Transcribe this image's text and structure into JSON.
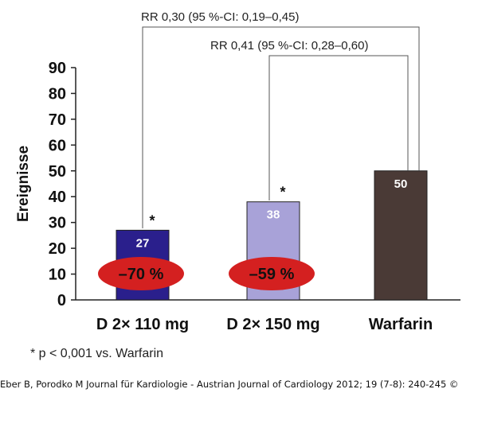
{
  "chart_data": {
    "type": "bar",
    "categories": [
      "D 2× 110 mg",
      "D 2× 150 mg",
      "Warfarin"
    ],
    "values": [
      27,
      38,
      50
    ],
    "value_labels": [
      "27",
      "38",
      "50"
    ],
    "bar_colors": [
      "#2a1f8c",
      "#a8a2d8",
      "#4a3a36"
    ],
    "ylabel": "Ereignisse",
    "ylim": [
      0,
      90
    ],
    "yticks": [
      0,
      10,
      20,
      30,
      40,
      50,
      60,
      70,
      80,
      90
    ],
    "significance_marks": [
      "*",
      "*",
      ""
    ],
    "reductions": [
      "–70 %",
      "–59 %"
    ],
    "reduction_color": "#d42020",
    "comparisons": [
      {
        "label": "RR 0,30 (95 %-CI: 0,19–0,45)",
        "from": 0,
        "to": 2
      },
      {
        "label": "RR 0,41 (95 %-CI: 0,28–0,60)",
        "from": 1,
        "to": 2
      }
    ],
    "footnote": "* p < 0,001 vs. Warfarin"
  },
  "citation": "Eber B, Porodko M Journal für Kardiologie - Austrian Journal of Cardiology 2012; 19 (7-8): 240-245 ©"
}
